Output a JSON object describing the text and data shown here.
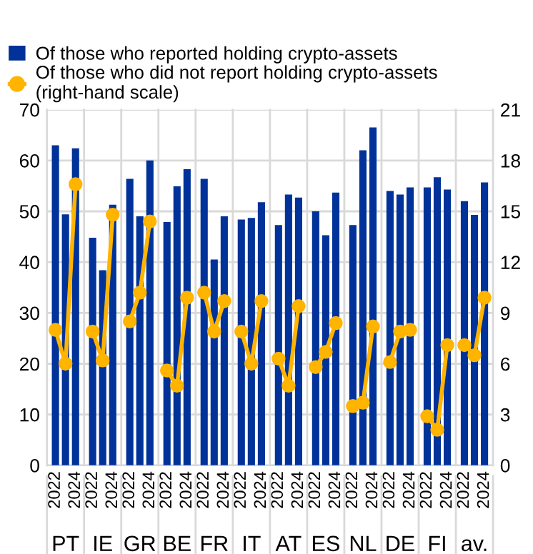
{
  "chart_data": {
    "type": "bar",
    "categories": [
      "2022",
      null,
      "2024",
      "2022",
      null,
      "2024",
      "2022",
      null,
      "2024",
      "2022",
      null,
      "2024",
      "2022",
      null,
      "2024",
      "2022",
      null,
      "2024",
      "2022",
      null,
      "2024",
      "2022",
      null,
      "2024",
      "2022",
      null,
      "2024",
      "2022",
      null,
      "2024",
      "2022",
      null,
      "2024",
      "2022",
      null,
      "2024"
    ],
    "annotations": [
      "PT",
      "IE",
      "GR",
      "BE",
      "FR",
      "IT",
      "AT",
      "ES",
      "NL",
      "DE",
      "FI",
      "av."
    ],
    "series": [
      {
        "name": "Of those who reported holding crypto-assets",
        "color": "#003299",
        "values": [
          63.0,
          49.4,
          62.4,
          44.8,
          38.4,
          51.3,
          56.4,
          49.0,
          60.0,
          47.9,
          54.9,
          58.3,
          56.4,
          40.5,
          49.0,
          48.4,
          48.7,
          51.8,
          47.3,
          53.3,
          52.7,
          50.0,
          45.3,
          53.7,
          47.3,
          62.0,
          66.5,
          54.0,
          53.3,
          54.7,
          54.7,
          56.7,
          54.3,
          52.0,
          49.3,
          55.7
        ]
      },
      {
        "name": "Of those who did not report holding crypto-assets\n(right-hand scale)",
        "type": "line",
        "axis": "y2",
        "color": "#ffb400",
        "marker": "circle",
        "values": [
          8.0,
          6.0,
          16.6,
          7.9,
          6.2,
          14.8,
          8.5,
          10.2,
          14.4,
          5.6,
          4.7,
          9.9,
          10.2,
          7.9,
          9.7,
          7.9,
          6.0,
          9.7,
          6.3,
          4.7,
          9.4,
          5.8,
          6.7,
          8.4,
          3.5,
          3.7,
          8.2,
          6.1,
          7.9,
          8.0,
          2.9,
          2.1,
          7.1,
          7.1,
          6.5,
          9.9
        ]
      }
    ],
    "ylim": [
      0,
      70
    ],
    "yticks": [
      0,
      10,
      20,
      30,
      40,
      50,
      60,
      70
    ],
    "y2lim": [
      0,
      21
    ],
    "y2ticks": [
      0,
      3,
      6,
      9,
      12,
      15,
      18,
      21
    ],
    "grid": true,
    "legend": "top left"
  }
}
